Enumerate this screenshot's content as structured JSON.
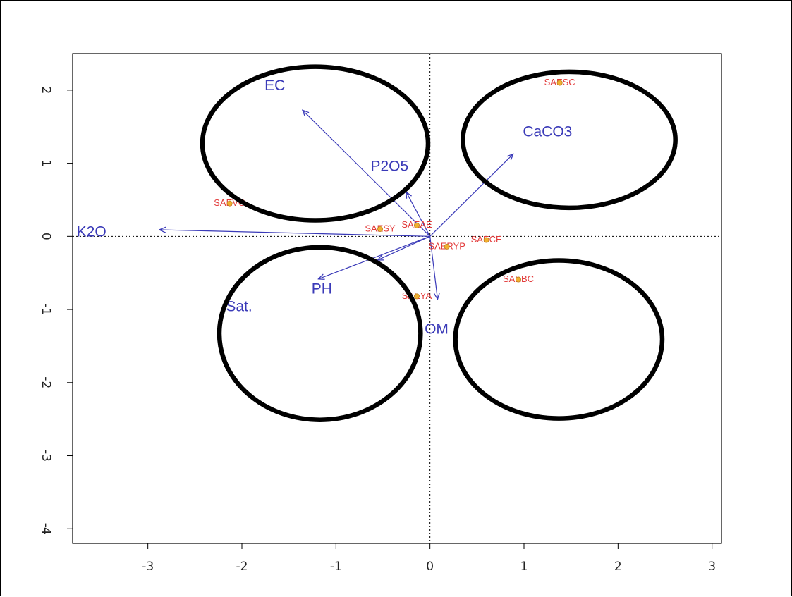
{
  "chart_data": {
    "type": "scatter",
    "subtype": "biplot",
    "title": "",
    "xlabel": "",
    "ylabel": "",
    "xlim": [
      -3.8,
      3.1
    ],
    "ylim": [
      -4.2,
      2.5
    ],
    "x_ticks": [
      -3,
      -2,
      -1,
      0,
      1,
      2,
      3
    ],
    "y_ticks": [
      2,
      1,
      0,
      -1,
      -2,
      -3,
      -4
    ],
    "x_tick_labels": [
      "-3",
      "-2",
      "-1",
      "0",
      "1",
      "2",
      "3"
    ],
    "y_tick_labels": [
      "2",
      "1",
      "0",
      "-1",
      "-2",
      "-3",
      "-4"
    ],
    "reference_lines": [
      {
        "axis": "x",
        "value": 0,
        "style": "dotted"
      },
      {
        "axis": "y",
        "value": 0,
        "style": "dotted"
      }
    ],
    "vectors": [
      {
        "name": "EC",
        "x": -1.35,
        "y": 1.72,
        "label_x": -1.65,
        "label_y": 2.05
      },
      {
        "name": "P2O5",
        "x": -0.25,
        "y": 0.6,
        "label_x": -0.43,
        "label_y": 0.95
      },
      {
        "name": "CaCO3",
        "x": 0.88,
        "y": 1.12,
        "label_x": 1.25,
        "label_y": 1.42
      },
      {
        "name": "K2O",
        "x": -2.87,
        "y": 0.09,
        "label_x": -3.6,
        "label_y": 0.05
      },
      {
        "name": "PH",
        "x": -1.18,
        "y": -0.58,
        "label_x": -1.15,
        "label_y": -0.73
      },
      {
        "name": "Sat.",
        "x": -0.55,
        "y": -0.32,
        "label_x": -2.03,
        "label_y": -0.97
      },
      {
        "name": "OM",
        "x": 0.08,
        "y": -0.85,
        "label_x": 0.07,
        "label_y": -1.28
      }
    ],
    "samples": [
      {
        "label": "SAESC",
        "x": 1.38,
        "y": 2.1
      },
      {
        "label": "SAEVG",
        "x": -2.13,
        "y": 0.45
      },
      {
        "label": "SAESY",
        "x": -0.53,
        "y": 0.1
      },
      {
        "label": "SAEAE",
        "x": -0.14,
        "y": 0.15
      },
      {
        "label": "SAECE",
        "x": 0.6,
        "y": -0.05
      },
      {
        "label": "SAERYP",
        "x": 0.18,
        "y": -0.14
      },
      {
        "label": "SAEBC",
        "x": 0.94,
        "y": -0.59
      },
      {
        "label": "SAEYA",
        "x": -0.14,
        "y": -0.82
      }
    ],
    "annotations": [
      {
        "type": "ellipse",
        "cx": -1.22,
        "cy": 1.27,
        "rx": 1.2,
        "ry": 1.05
      },
      {
        "type": "ellipse",
        "cx": 1.48,
        "cy": 1.32,
        "rx": 1.13,
        "ry": 0.93
      },
      {
        "type": "ellipse",
        "cx": -1.17,
        "cy": -1.33,
        "rx": 1.07,
        "ry": 1.18
      },
      {
        "type": "ellipse",
        "cx": 1.37,
        "cy": -1.41,
        "rx": 1.1,
        "ry": 1.08
      }
    ],
    "grid": false,
    "legend": "none",
    "colors": {
      "vector": "#3a3ab8",
      "sample_text": "#e23a3a",
      "sample_point": "#f0b030",
      "annotation": "#000000",
      "axis": "#000000"
    }
  }
}
